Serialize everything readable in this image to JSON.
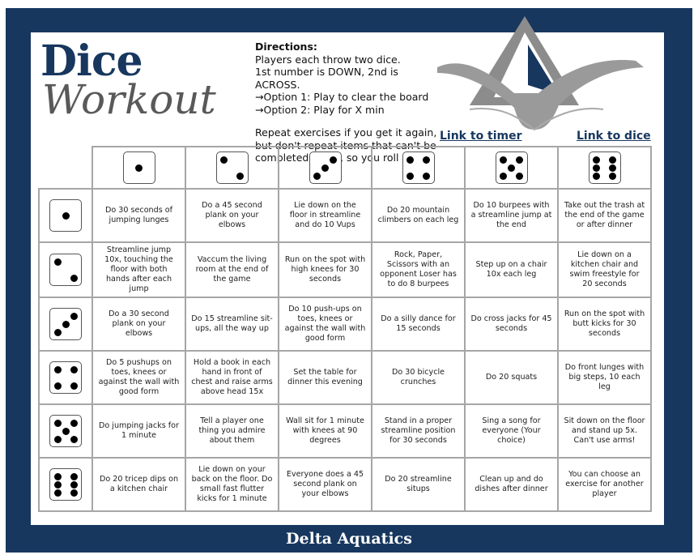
{
  "title": {
    "line1": "Dice",
    "line2": "Workout"
  },
  "directions": {
    "heading": "Directions:",
    "lines": [
      "Players each throw two dice.",
      "1st number is DOWN, 2nd is ACROSS.",
      "→Option 1: Play to clear the board",
      "→Option 2: Play for X min"
    ],
    "note": "Repeat exercises if you get it again, but don't repeat items that can't be completed again, so you  roll again."
  },
  "links": {
    "timer": "Link to timer",
    "dice": "Link to dice"
  },
  "colors": {
    "navy": "#17375e",
    "grey": "#595959"
  },
  "dice_faces": [
    1,
    2,
    3,
    4,
    5,
    6
  ],
  "grid": [
    [
      "Do 30 seconds of jumping lunges",
      "Do a 45 second plank on your elbows",
      "Lie down on the floor in streamline and do 10 Vups",
      "Do 20 mountain climbers on each leg",
      "Do 10 burpees with a streamline jump at the end",
      "Take out the trash at the end of the game or after dinner"
    ],
    [
      "Streamline jump 10x, touching the floor with both hands after each jump",
      "Vaccum the living room at the end of the game",
      "Run on the spot with high knees for 30 seconds",
      "Rock, Paper, Scissors with an opponent Loser has to do 8 burpees",
      "Step up on a chair 10x each leg",
      "Lie down on a kitchen chair and swim freestyle for 20 seconds"
    ],
    [
      "Do a 30 second plank on your elbows",
      "Do 15 streamline sit-ups, all the way up",
      "Do 10 push-ups on toes, knees or against the wall with good form",
      "Do a silly dance for 15 seconds",
      "Do cross jacks for 45 seconds",
      "Run on the spot with butt kicks for 30 seconds"
    ],
    [
      "Do 5 pushups on toes, knees or against the wall with good form",
      "Hold a book in each hand in front of chest and raise arms above head 15x",
      "Set the table for dinner this evening",
      "Do 30 bicycle crunches",
      "Do 20 squats",
      "Do front lunges with big steps, 10 each leg"
    ],
    [
      "Do jumping jacks for 1 minute",
      "Tell a player one thing you admire about them",
      "Wall sit for 1 minute with knees at 90 degrees",
      "Stand in a proper streamline position for 30 seconds",
      "Sing a song for everyone (Your choice)",
      "Sit down on the floor and stand up 5x. Can't use arms!"
    ],
    [
      "Do 20 tricep dips on a kitchen chair",
      "Lie down on your back on the floor. Do small fast flutter kicks for 1 minute",
      "Everyone does a 45 second plank on your elbows",
      "Do 20 streamline situps",
      "Clean up and do dishes after dinner",
      "You can choose an exercise for another player"
    ]
  ],
  "footer": "Delta Aquatics"
}
